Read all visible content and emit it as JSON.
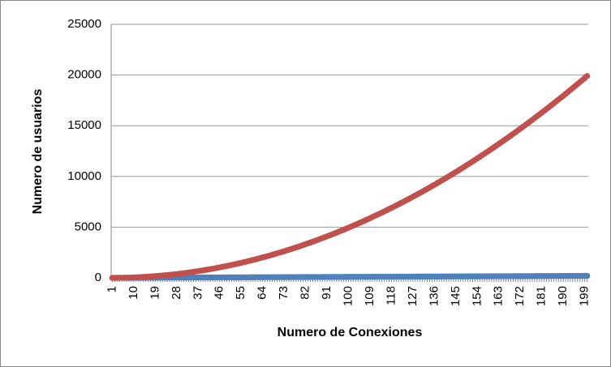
{
  "chart_data": {
    "type": "line",
    "x_label": "Numero de Conexiones",
    "y_label": "Numero de usuarios",
    "ylim": [
      0,
      25000
    ],
    "yticks": [
      0,
      5000,
      10000,
      15000,
      20000,
      25000
    ],
    "grid": true,
    "categories": [
      "1",
      null,
      null,
      null,
      null,
      null,
      null,
      null,
      null,
      "10",
      null,
      null,
      null,
      null,
      null,
      null,
      null,
      null,
      "19",
      null,
      null,
      null,
      null,
      null,
      null,
      null,
      null,
      "28",
      null,
      null,
      null,
      null,
      null,
      null,
      null,
      null,
      "37",
      null,
      null,
      null,
      null,
      null,
      null,
      null,
      null,
      "46",
      null,
      null,
      null,
      null,
      null,
      null,
      null,
      null,
      "55",
      null,
      null,
      null,
      null,
      null,
      null,
      null,
      null,
      "64",
      null,
      null,
      null,
      null,
      null,
      null,
      null,
      null,
      "73",
      null,
      null,
      null,
      null,
      null,
      null,
      null,
      null,
      "82",
      null,
      null,
      null,
      null,
      null,
      null,
      null,
      null,
      "91",
      null,
      null,
      null,
      null,
      null,
      null,
      null,
      null,
      "100",
      null,
      null,
      null,
      null,
      null,
      null,
      null,
      null,
      "109",
      null,
      null,
      null,
      null,
      null,
      null,
      null,
      null,
      "118",
      null,
      null,
      null,
      null,
      null,
      null,
      null,
      null,
      "127",
      null,
      null,
      null,
      null,
      null,
      null,
      null,
      null,
      "136",
      null,
      null,
      null,
      null,
      null,
      null,
      null,
      null,
      "145",
      null,
      null,
      null,
      null,
      null,
      null,
      null,
      null,
      "154",
      null,
      null,
      null,
      null,
      null,
      null,
      null,
      null,
      "163",
      null,
      null,
      null,
      null,
      null,
      null,
      null,
      null,
      "172",
      null,
      null,
      null,
      null,
      null,
      null,
      null,
      null,
      "181",
      null,
      null,
      null,
      null,
      null,
      null,
      null,
      null,
      "190",
      null,
      null,
      null,
      null,
      null,
      null,
      null,
      null,
      "199",
      null
    ],
    "series": [
      {
        "color": "#4f81bd",
        "values": [
          1,
          2,
          3,
          4,
          5,
          6,
          7,
          8,
          9,
          10,
          11,
          12,
          13,
          14,
          15,
          16,
          17,
          18,
          19,
          20,
          21,
          22,
          23,
          24,
          25,
          26,
          27,
          28,
          29,
          30,
          31,
          32,
          33,
          34,
          35,
          36,
          37,
          38,
          39,
          40,
          41,
          42,
          43,
          44,
          45,
          46,
          47,
          48,
          49,
          50,
          51,
          52,
          53,
          54,
          55,
          56,
          57,
          58,
          59,
          60,
          61,
          62,
          63,
          64,
          65,
          66,
          67,
          68,
          69,
          70,
          71,
          72,
          73,
          74,
          75,
          76,
          77,
          78,
          79,
          80,
          81,
          82,
          83,
          84,
          85,
          86,
          87,
          88,
          89,
          90,
          91,
          92,
          93,
          94,
          95,
          96,
          97,
          98,
          99,
          100,
          101,
          102,
          103,
          104,
          105,
          106,
          107,
          108,
          109,
          110,
          111,
          112,
          113,
          114,
          115,
          116,
          117,
          118,
          119,
          120,
          121,
          122,
          123,
          124,
          125,
          126,
          127,
          128,
          129,
          130,
          131,
          132,
          133,
          134,
          135,
          136,
          137,
          138,
          139,
          140,
          141,
          142,
          143,
          144,
          145,
          146,
          147,
          148,
          149,
          150,
          151,
          152,
          153,
          154,
          155,
          156,
          157,
          158,
          159,
          160,
          161,
          162,
          163,
          164,
          165,
          166,
          167,
          168,
          169,
          170,
          171,
          172,
          173,
          174,
          175,
          176,
          177,
          178,
          179,
          180,
          181,
          182,
          183,
          184,
          185,
          186,
          187,
          188,
          189,
          190,
          191,
          192,
          193,
          194,
          195,
          196,
          197,
          198,
          199,
          200
        ]
      },
      {
        "color": "#c0504d",
        "values": [
          0,
          1,
          3,
          6,
          10,
          15,
          21,
          28,
          36,
          45,
          55,
          66,
          78,
          91,
          105,
          120,
          136,
          153,
          171,
          190,
          210,
          231,
          253,
          276,
          300,
          325,
          351,
          378,
          406,
          435,
          465,
          496,
          528,
          561,
          595,
          630,
          666,
          703,
          741,
          780,
          820,
          861,
          903,
          946,
          990,
          1035,
          1081,
          1128,
          1176,
          1225,
          1275,
          1326,
          1378,
          1431,
          1485,
          1540,
          1596,
          1653,
          1711,
          1770,
          1830,
          1891,
          1953,
          2016,
          2080,
          2145,
          2211,
          2278,
          2346,
          2415,
          2485,
          2556,
          2628,
          2701,
          2775,
          2850,
          2926,
          3003,
          3081,
          3160,
          3240,
          3321,
          3403,
          3486,
          3570,
          3655,
          3741,
          3828,
          3916,
          4005,
          4095,
          4186,
          4278,
          4371,
          4465,
          4560,
          4656,
          4753,
          4851,
          4950,
          5050,
          5151,
          5253,
          5356,
          5460,
          5565,
          5671,
          5778,
          5886,
          5995,
          6105,
          6216,
          6328,
          6441,
          6555,
          6670,
          6786,
          6903,
          7021,
          7140,
          7260,
          7381,
          7503,
          7626,
          7750,
          7875,
          8001,
          8128,
          8256,
          8385,
          8515,
          8646,
          8778,
          8911,
          9045,
          9180,
          9316,
          9453,
          9591,
          9730,
          9870,
          10011,
          10153,
          10296,
          10440,
          10585,
          10731,
          10878,
          11026,
          11175,
          11325,
          11476,
          11628,
          11781,
          11935,
          12090,
          12246,
          12403,
          12561,
          12720,
          12880,
          13041,
          13203,
          13366,
          13530,
          13695,
          13861,
          14028,
          14196,
          14365,
          14535,
          14706,
          14878,
          15051,
          15225,
          15400,
          15576,
          15753,
          15931,
          16110,
          16290,
          16471,
          16653,
          16836,
          17020,
          17205,
          17391,
          17578,
          17766,
          17955,
          18145,
          18336,
          18528,
          18721,
          18915,
          19110,
          19306,
          19503,
          19701,
          19900
        ]
      }
    ]
  }
}
